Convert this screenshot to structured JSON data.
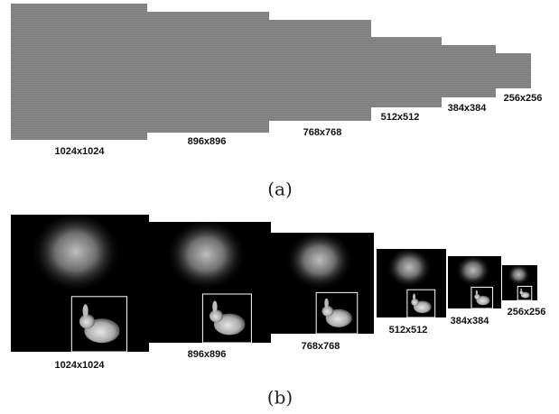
{
  "panels": [
    {
      "caption": "(a)",
      "images": [
        {
          "label": "1024x1024"
        },
        {
          "label": "896x896"
        },
        {
          "label": "768x768"
        },
        {
          "label": "512x512"
        },
        {
          "label": "384x384"
        },
        {
          "label": "256x256"
        }
      ]
    },
    {
      "caption": "(b)",
      "images": [
        {
          "label": "1024x1024"
        },
        {
          "label": "896x896"
        },
        {
          "label": "768x768"
        },
        {
          "label": "512x512"
        },
        {
          "label": "384x384"
        },
        {
          "label": "256x256"
        }
      ]
    }
  ]
}
